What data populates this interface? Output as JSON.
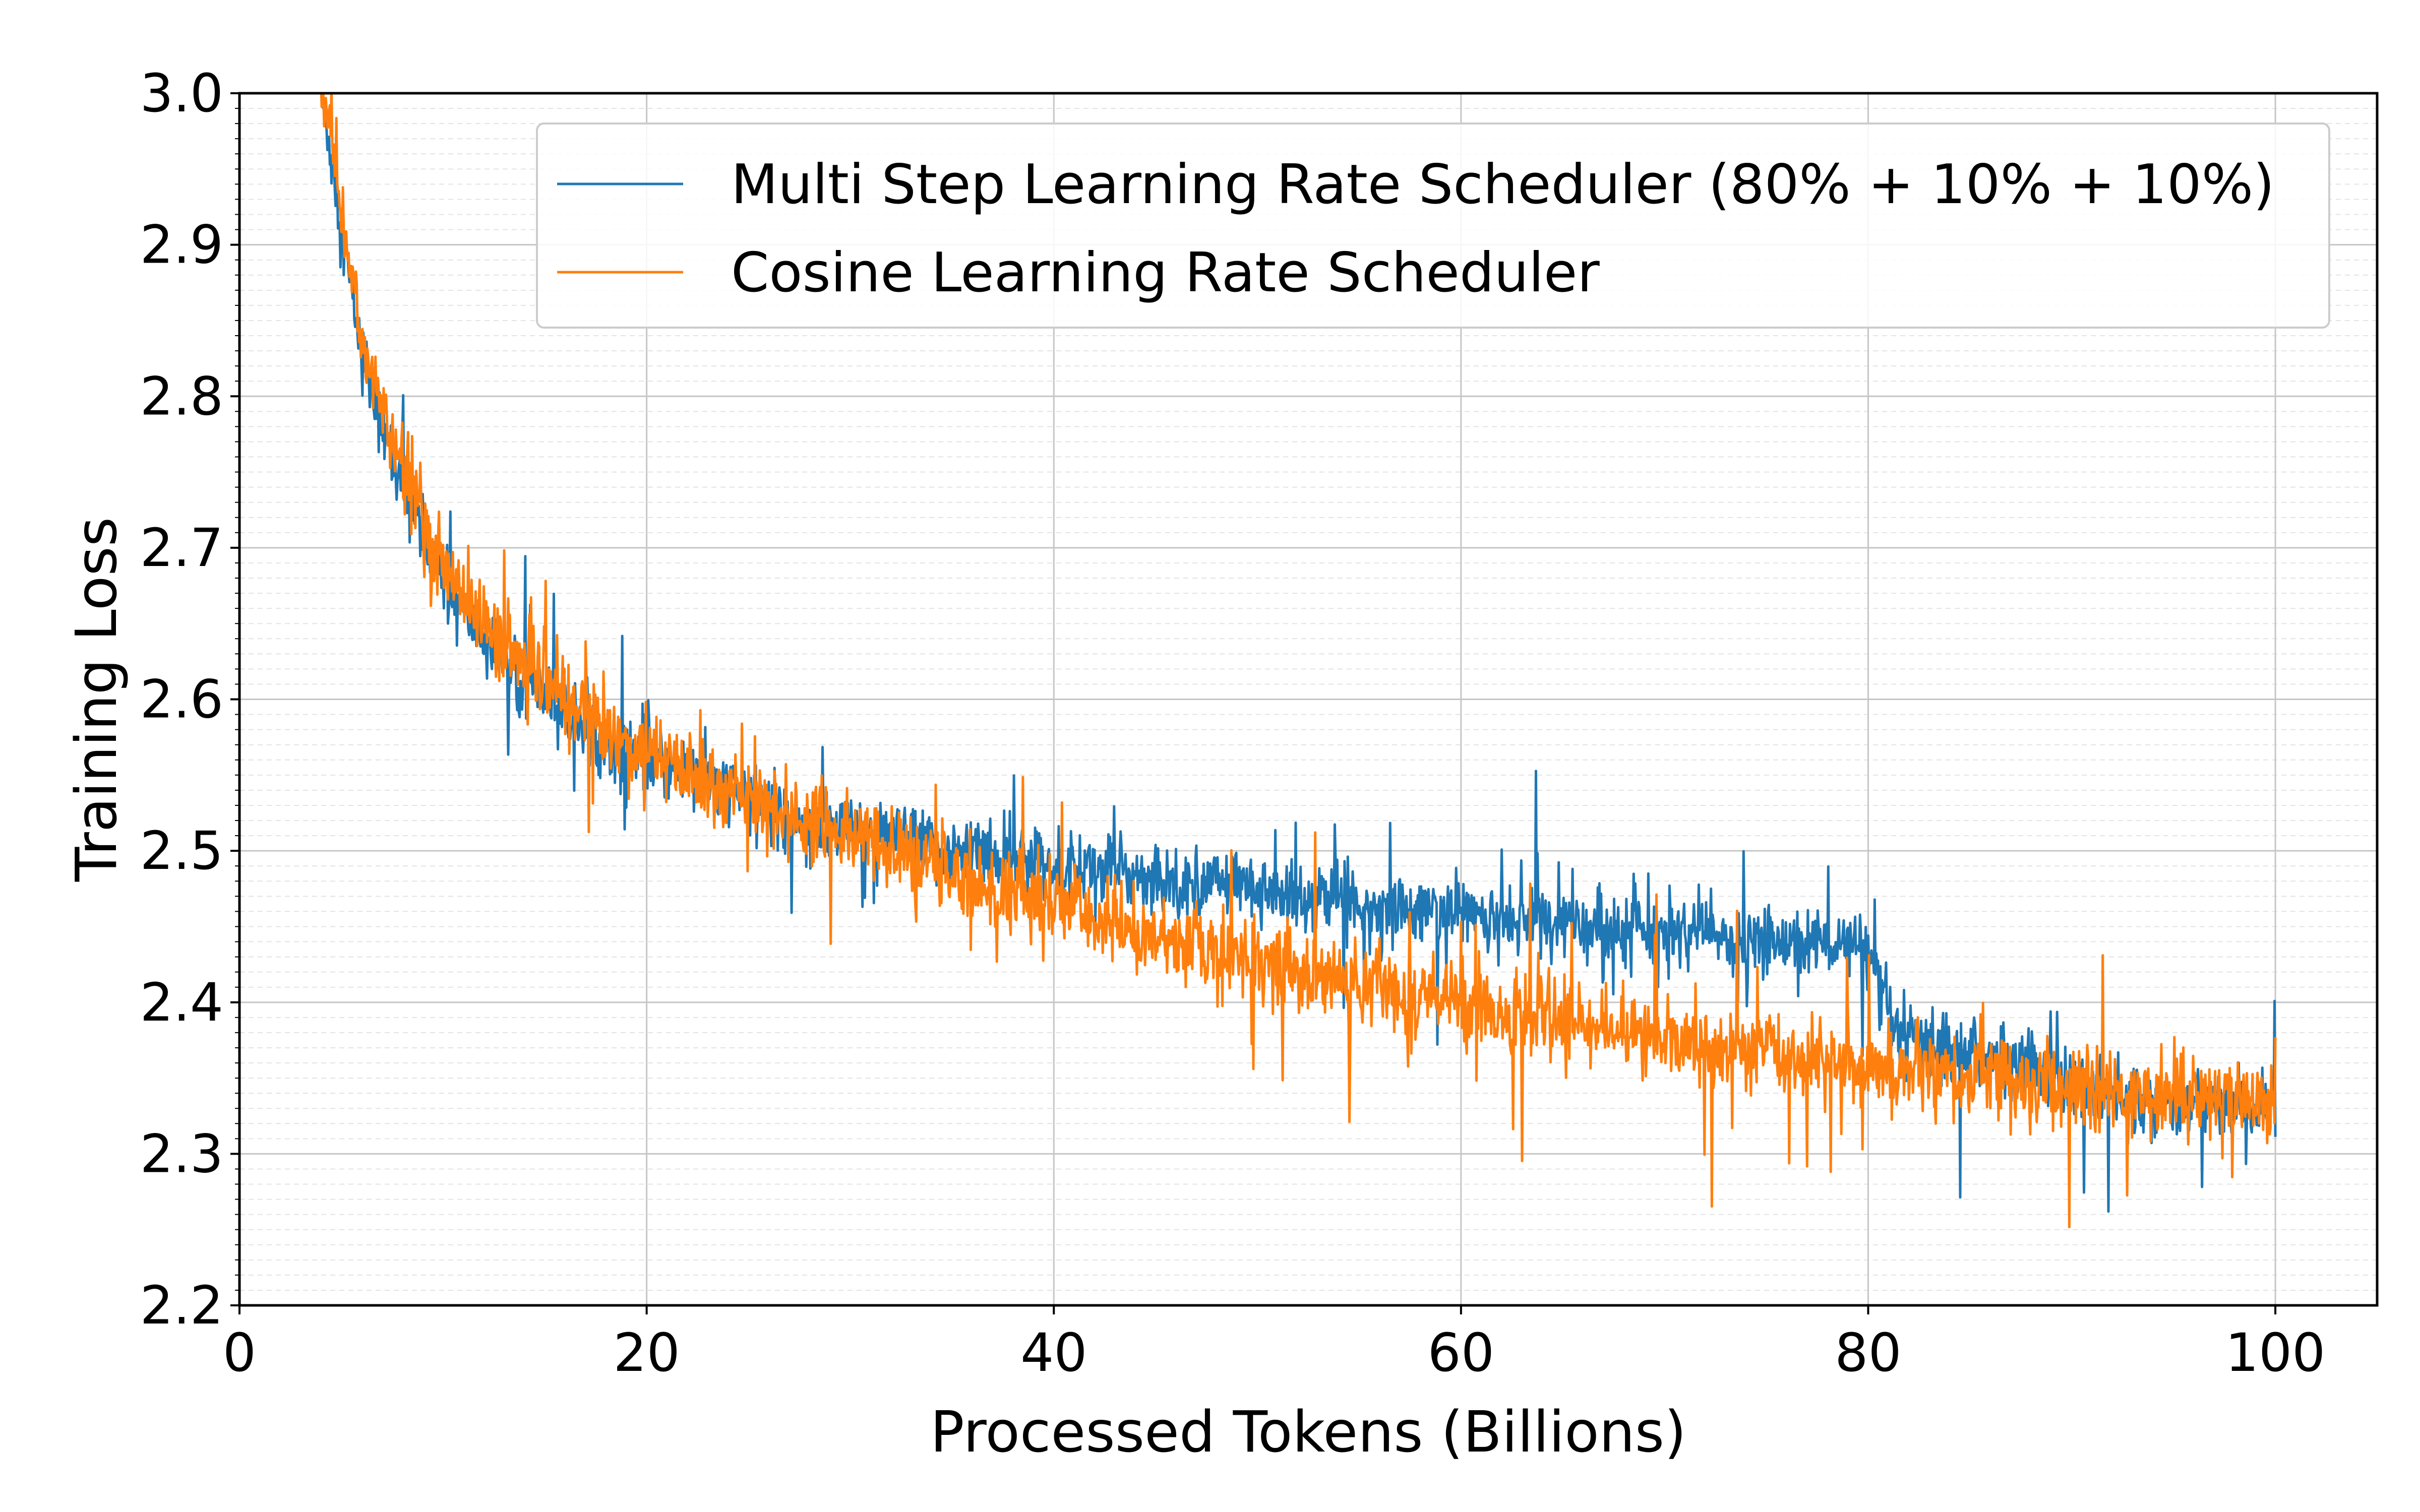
{
  "chart_data": {
    "type": "line",
    "xlabel": "Processed Tokens (Billions)",
    "ylabel": "Training Loss",
    "xlim": [
      0,
      105
    ],
    "ylim": [
      2.2,
      3.0
    ],
    "x_ticks": [
      0,
      20,
      40,
      60,
      80,
      100
    ],
    "x_tick_labels": [
      "0",
      "20",
      "40",
      "60",
      "80",
      "100"
    ],
    "y_ticks": [
      2.2,
      2.3,
      2.4,
      2.5,
      2.6,
      2.7,
      2.8,
      2.9,
      3.0
    ],
    "y_tick_labels": [
      "2.2",
      "2.3",
      "2.4",
      "2.5",
      "2.6",
      "2.7",
      "2.8",
      "2.9",
      "3.0"
    ],
    "grid": "major solid, minor dashed",
    "legend_position": "top-right",
    "series": [
      {
        "name": "Multi Step Learning Rate Scheduler (80% + 10% + 10%)",
        "color": "#1f77b4",
        "noise": 0.02,
        "x": [
          4,
          4.5,
          5,
          5.5,
          6,
          7,
          8,
          9,
          10,
          12,
          14,
          16,
          18,
          20,
          22,
          24,
          26,
          28,
          30,
          32,
          34,
          36,
          38,
          40,
          42,
          44,
          46,
          48,
          50,
          52,
          54,
          56,
          58,
          60,
          62,
          64,
          66,
          68,
          70,
          72,
          74,
          76,
          78,
          79.5,
          80,
          80.5,
          81,
          81.5,
          82,
          84,
          86,
          88,
          90,
          92,
          94,
          96,
          98,
          100
        ],
        "y": [
          3.0,
          2.96,
          2.91,
          2.87,
          2.83,
          2.78,
          2.74,
          2.71,
          2.68,
          2.64,
          2.61,
          2.59,
          2.57,
          2.56,
          2.55,
          2.54,
          2.53,
          2.52,
          2.515,
          2.51,
          2.5,
          2.5,
          2.495,
          2.49,
          2.49,
          2.485,
          2.48,
          2.48,
          2.475,
          2.47,
          2.47,
          2.465,
          2.46,
          2.46,
          2.455,
          2.455,
          2.45,
          2.45,
          2.445,
          2.445,
          2.44,
          2.44,
          2.44,
          2.435,
          2.43,
          2.41,
          2.39,
          2.38,
          2.375,
          2.37,
          2.365,
          2.36,
          2.345,
          2.34,
          2.335,
          2.333,
          2.332,
          2.33
        ]
      },
      {
        "name": "Cosine Learning Rate Scheduler",
        "color": "#ff7f0e",
        "noise": 0.024,
        "x": [
          4,
          4.5,
          5,
          5.5,
          6,
          7,
          8,
          9,
          10,
          12,
          14,
          16,
          18,
          20,
          22,
          24,
          26,
          28,
          30,
          32,
          34,
          36,
          38,
          40,
          42,
          44,
          46,
          48,
          50,
          52,
          54,
          56,
          58,
          60,
          62,
          64,
          66,
          68,
          70,
          72,
          74,
          76,
          78,
          80,
          82,
          84,
          86,
          88,
          90,
          92,
          94,
          96,
          98,
          100
        ],
        "y": [
          3.0,
          2.97,
          2.92,
          2.88,
          2.84,
          2.79,
          2.75,
          2.72,
          2.69,
          2.65,
          2.62,
          2.6,
          2.58,
          2.565,
          2.55,
          2.54,
          2.53,
          2.52,
          2.51,
          2.5,
          2.49,
          2.48,
          2.47,
          2.465,
          2.455,
          2.445,
          2.44,
          2.435,
          2.43,
          2.42,
          2.415,
          2.41,
          2.405,
          2.4,
          2.395,
          2.39,
          2.385,
          2.38,
          2.375,
          2.37,
          2.37,
          2.365,
          2.36,
          2.355,
          2.355,
          2.35,
          2.35,
          2.345,
          2.345,
          2.34,
          2.34,
          2.34,
          2.335,
          2.335
        ]
      }
    ]
  }
}
